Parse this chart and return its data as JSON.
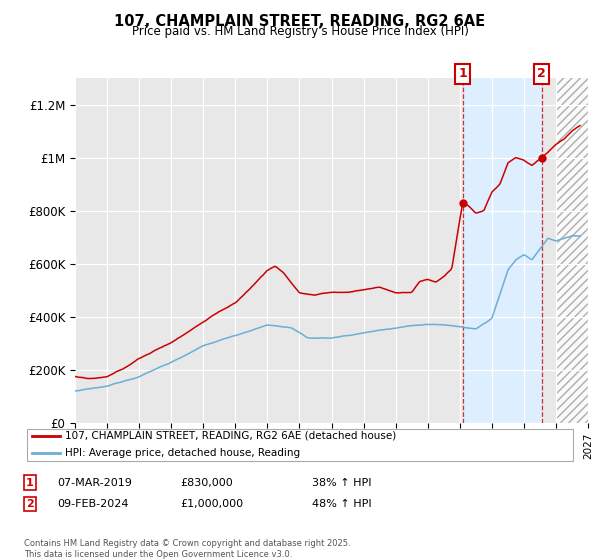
{
  "title": "107, CHAMPLAIN STREET, READING, RG2 6AE",
  "subtitle": "Price paid vs. HM Land Registry's House Price Index (HPI)",
  "ylim": [
    0,
    1300000
  ],
  "yticks": [
    0,
    200000,
    400000,
    600000,
    800000,
    1000000,
    1200000
  ],
  "ytick_labels": [
    "£0",
    "£200K",
    "£400K",
    "£600K",
    "£800K",
    "£1M",
    "£1.2M"
  ],
  "hpi_color": "#6baed6",
  "price_color": "#cc0000",
  "marker1_x": 2019.18,
  "marker1_y": 830000,
  "marker2_x": 2024.1,
  "marker2_y": 1000000,
  "marker1_label": "07-MAR-2019",
  "marker1_price": "£830,000",
  "marker1_hpi": "38% ↑ HPI",
  "marker2_label": "09-FEB-2024",
  "marker2_price": "£1,000,000",
  "marker2_hpi": "48% ↑ HPI",
  "legend1": "107, CHAMPLAIN STREET, READING, RG2 6AE (detached house)",
  "legend2": "HPI: Average price, detached house, Reading",
  "footnote": "Contains HM Land Registry data © Crown copyright and database right 2025.\nThis data is licensed under the Open Government Licence v3.0.",
  "xmin": 1995,
  "xmax": 2027,
  "bg_color": "#e8e8e8",
  "highlight_color": "#ddeeff",
  "hatch_color": "#cccccc"
}
